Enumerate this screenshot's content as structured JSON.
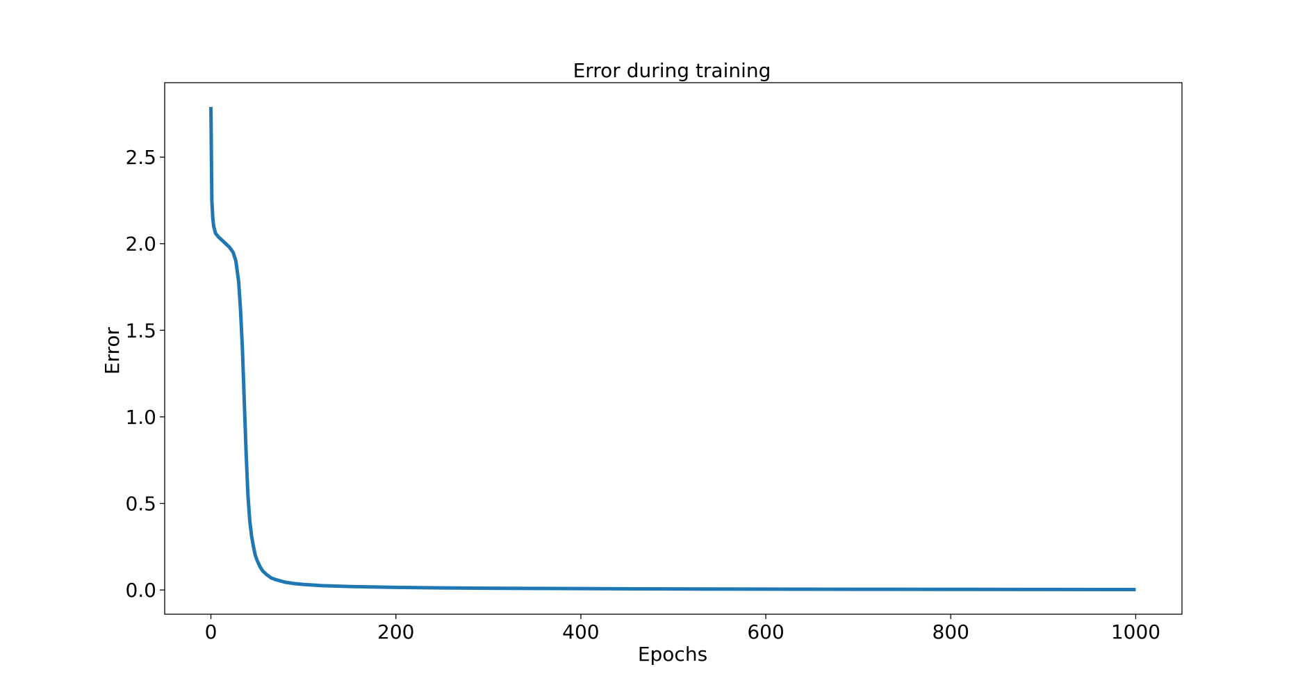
{
  "chart_data": {
    "type": "line",
    "title": "Error during training",
    "xlabel": "Epochs",
    "ylabel": "Error",
    "xlim": [
      -50,
      1050
    ],
    "ylim": [
      -0.14,
      2.93
    ],
    "xticks": [
      0,
      200,
      400,
      600,
      800,
      1000
    ],
    "yticks": [
      0.0,
      0.5,
      1.0,
      1.5,
      2.0,
      2.5
    ],
    "xtick_labels": [
      "0",
      "200",
      "400",
      "600",
      "800",
      "1000"
    ],
    "ytick_labels": [
      "0.0",
      "0.5",
      "1.0",
      "1.5",
      "2.0",
      "2.5"
    ],
    "grid": false,
    "line_color": "#1f77b4",
    "series": [
      {
        "x": [
          0,
          1,
          2,
          3,
          5,
          8,
          12,
          16,
          20,
          24,
          27,
          30,
          32,
          34,
          36,
          38,
          40,
          42,
          44,
          46,
          48,
          50,
          53,
          56,
          60,
          65,
          70,
          80,
          90,
          100,
          120,
          150,
          200,
          250,
          300,
          400,
          500,
          600,
          700,
          800,
          900,
          1000
        ],
        "y": [
          2.79,
          2.25,
          2.15,
          2.1,
          2.06,
          2.04,
          2.02,
          2.0,
          1.98,
          1.95,
          1.9,
          1.78,
          1.62,
          1.4,
          1.1,
          0.8,
          0.55,
          0.4,
          0.31,
          0.25,
          0.2,
          0.17,
          0.135,
          0.11,
          0.09,
          0.07,
          0.06,
          0.045,
          0.037,
          0.032,
          0.025,
          0.02,
          0.015,
          0.012,
          0.01,
          0.008,
          0.006,
          0.005,
          0.004,
          0.0035,
          0.003,
          0.0025
        ]
      }
    ]
  }
}
